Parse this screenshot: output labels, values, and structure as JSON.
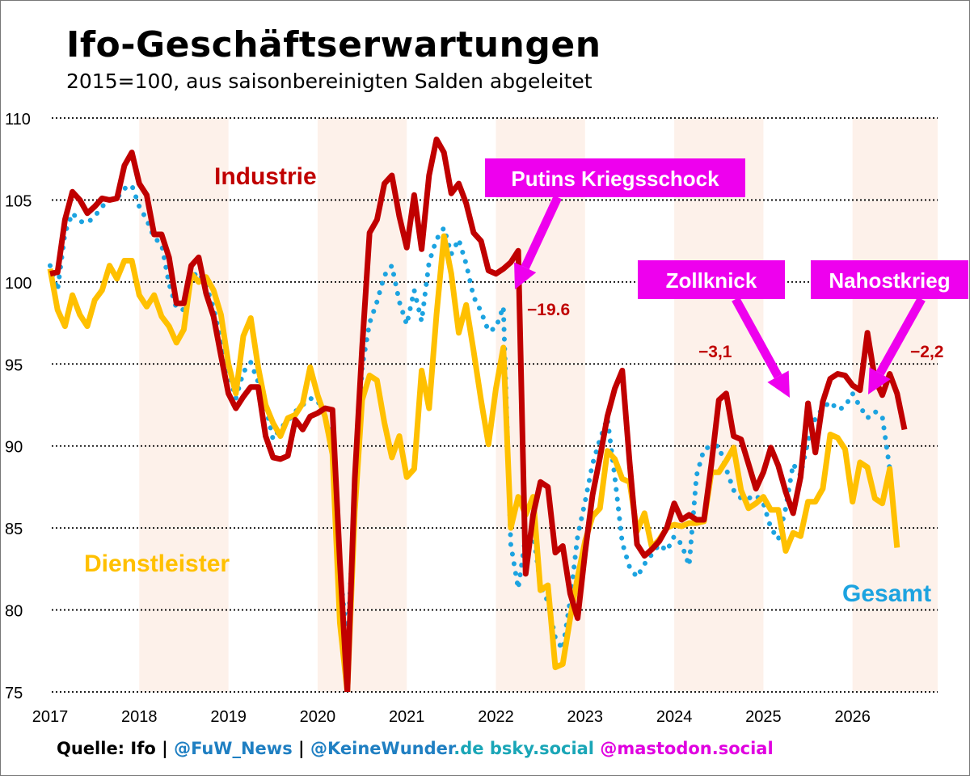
{
  "title": "Ifo-Geschäftserwartungen",
  "subtitle": "2015=100, aus saisonbereinigten Salden abgeleitet",
  "source": {
    "prefix": "Quelle: Ifo | ",
    "fuw": "@FuW_News",
    "sep": " | ",
    "keine": "@KeineWunder",
    "de": ".de ",
    "bsky": "bsky.social ",
    "mastodon": "@mastodon.social"
  },
  "colors": {
    "industrie": "#c00000",
    "dienstleister": "#ffc000",
    "gesamt": "#1ca3e0",
    "callout": "#ee00ee",
    "shade": "#fdf1ea",
    "grid": "#000000"
  },
  "chart_data": {
    "type": "line",
    "x_labels": [
      "2017",
      "2018",
      "2019",
      "2020",
      "2021",
      "2022",
      "2023",
      "2024",
      "2025",
      "2026"
    ],
    "ylim": [
      75,
      110
    ],
    "yticks": [
      75,
      80,
      85,
      90,
      95,
      100,
      105,
      110
    ],
    "series": [
      {
        "name": "Industrie",
        "label": "Industrie",
        "style": "solid",
        "values": [
          100.5,
          100.6,
          103.8,
          105.5,
          105.0,
          104.2,
          104.6,
          105.1,
          105.0,
          105.1,
          107.1,
          107.9,
          106.0,
          105.3,
          102.9,
          102.9,
          101.5,
          98.7,
          98.7,
          101.0,
          101.5,
          99.3,
          97.9,
          95.5,
          93.2,
          92.3,
          93.0,
          93.6,
          93.6,
          90.6,
          89.3,
          89.2,
          89.4,
          91.6,
          91.0,
          91.8,
          92.0,
          92.3,
          92.2,
          82.9,
          75.0,
          88.0,
          96.0,
          103.0,
          103.8,
          106.0,
          106.5,
          104.0,
          102.1,
          105.3,
          102.0,
          106.5,
          108.7,
          107.9,
          105.4,
          106.0,
          104.8,
          103.0,
          102.5,
          100.7,
          100.5,
          100.8,
          101.2,
          101.9,
          82.2,
          85.8,
          87.8,
          87.5,
          83.5,
          83.9,
          81.0,
          79.5,
          83.5,
          87.0,
          89.3,
          91.8,
          93.5,
          94.6,
          89.0,
          84.0,
          83.3,
          83.7,
          84.2,
          85.0,
          86.5,
          85.5,
          85.8,
          85.5,
          85.5,
          88.9,
          92.8,
          93.2,
          90.6,
          90.4,
          88.9,
          87.4,
          88.4,
          89.9,
          88.8,
          87.2,
          85.9,
          88.1,
          92.6,
          89.6,
          92.7,
          94.1,
          94.4,
          94.3,
          93.7,
          93.4,
          96.9,
          94.1,
          93.1,
          94.4,
          93.2,
          91.0
        ]
      },
      {
        "name": "Dienstleister",
        "label": "Dienstleister",
        "style": "solid",
        "values": [
          100.8,
          98.3,
          97.3,
          99.2,
          98.0,
          97.3,
          98.9,
          99.5,
          101.0,
          100.2,
          101.3,
          101.3,
          99.2,
          98.5,
          99.2,
          97.9,
          97.3,
          96.3,
          97.1,
          100.5,
          100.0,
          100.3,
          99.5,
          98.0,
          95.0,
          93.2,
          96.7,
          97.8,
          94.8,
          92.5,
          91.4,
          90.6,
          91.7,
          91.9,
          92.6,
          94.8,
          93.1,
          91.8,
          89.5,
          79.2,
          75.0,
          86.0,
          92.8,
          94.3,
          94.0,
          91.4,
          89.3,
          90.6,
          88.1,
          88.6,
          94.6,
          92.3,
          98.0,
          102.8,
          100.5,
          96.9,
          98.6,
          95.8,
          92.8,
          90.1,
          93.5,
          96.0,
          85.0,
          86.9,
          85.8,
          86.9,
          81.2,
          81.5,
          76.5,
          76.7,
          79.5,
          82.0,
          84.2,
          85.7,
          86.2,
          89.7,
          89.2,
          88.0,
          87.8,
          84.8,
          85.9,
          83.8,
          84.3,
          85.0,
          85.2,
          85.1,
          85.3,
          85.3,
          85.4,
          88.4,
          88.4,
          89.1,
          89.9,
          87.3,
          86.2,
          86.5,
          86.9,
          86.1,
          86.1,
          83.6,
          84.7,
          84.5,
          86.6,
          86.6,
          87.4,
          90.7,
          90.5,
          89.8,
          86.6,
          89.0,
          88.7,
          86.8,
          86.5,
          88.6,
          83.8
        ]
      },
      {
        "name": "Gesamt",
        "label": "Gesamt",
        "style": "dotted",
        "values": [
          101.0,
          99.5,
          103.0,
          104.2,
          103.7,
          103.6,
          104.0,
          104.6,
          105.0,
          105.1,
          105.7,
          105.9,
          104.6,
          103.8,
          102.7,
          102.3,
          99.9,
          98.4,
          98.3,
          100.3,
          100.6,
          99.8,
          98.4,
          96.4,
          94.5,
          92.9,
          94.5,
          95.1,
          93.9,
          92.4,
          90.4,
          91.1,
          91.5,
          92.1,
          92.5,
          92.9,
          92.8,
          91.6,
          91.0,
          82.5,
          78.0,
          86.5,
          94.8,
          97.5,
          98.8,
          100.4,
          101.0,
          98.8,
          97.4,
          99.5,
          97.6,
          101.2,
          102.6,
          103.3,
          101.7,
          102.6,
          101.1,
          99.1,
          98.2,
          97.0,
          97.2,
          98.5,
          84.0,
          81.3,
          84.5,
          84.8,
          81.5,
          80.5,
          78.3,
          77.6,
          80.6,
          84.5,
          86.6,
          88.9,
          90.4,
          91.7,
          88.1,
          84.1,
          82.6,
          82.0,
          82.8,
          83.4,
          84.0,
          83.6,
          84.5,
          84.0,
          82.7,
          88.2,
          89.8,
          90.0,
          90.0,
          88.6,
          87.3,
          86.8,
          86.8,
          87.0,
          86.5,
          85.0,
          84.3,
          86.2,
          88.9,
          88.2,
          90.3,
          91.7,
          92.3,
          92.7,
          92.2,
          92.4,
          93.2,
          92.4,
          91.7,
          92.1,
          91.8,
          88.6
        ]
      }
    ],
    "annotations": [
      {
        "text": "Putins Kriegsschock",
        "kind": "callout"
      },
      {
        "text": "Zollknick",
        "kind": "callout"
      },
      {
        "text": "Nahostkrieg",
        "kind": "callout"
      },
      {
        "text": "−19.6",
        "kind": "value"
      },
      {
        "text": "−3,1",
        "kind": "value"
      },
      {
        "text": "−2,2",
        "kind": "value"
      }
    ]
  }
}
